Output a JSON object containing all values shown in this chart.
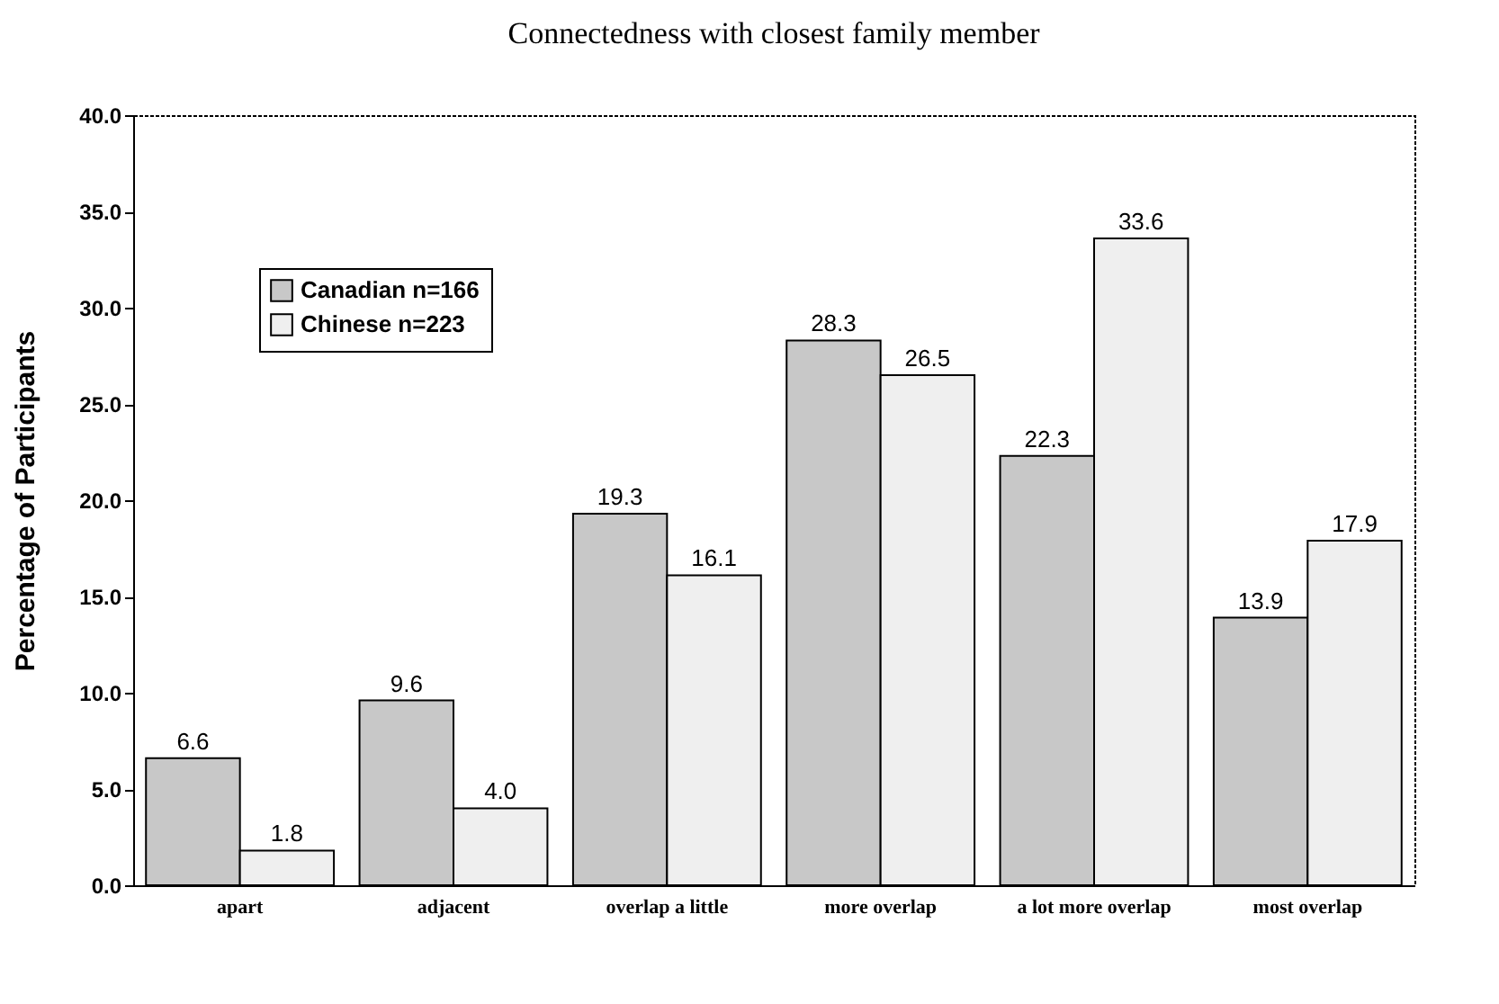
{
  "chart_data": {
    "type": "bar",
    "title": "Connectedness with closest family member",
    "ylabel": "Percentage of Participants",
    "categories": [
      "apart",
      "adjacent",
      "overlap a little",
      "more overlap",
      "a lot more overlap",
      "most overlap"
    ],
    "series": [
      {
        "name": "Canadian n=166",
        "color": "#c8c8c8",
        "values": [
          6.6,
          9.6,
          19.3,
          28.3,
          22.3,
          13.9
        ],
        "value_labels": [
          "6.6",
          "9.6",
          "19.3",
          "28.3",
          "22.3",
          "13.9"
        ]
      },
      {
        "name": "Chinese   n=223",
        "color": "#efefef",
        "values": [
          1.8,
          4.0,
          16.1,
          26.5,
          33.6,
          17.9
        ],
        "value_labels": [
          "1.8",
          "4.0",
          "16.1",
          "26.5",
          "33.6",
          "17.9"
        ]
      }
    ],
    "ylim": [
      0,
      40
    ],
    "yticks": [
      {
        "value": 0,
        "label": "0.0"
      },
      {
        "value": 5,
        "label": "5.0"
      },
      {
        "value": 10,
        "label": "10.0"
      },
      {
        "value": 15,
        "label": "15.0"
      },
      {
        "value": 20,
        "label": "20.0"
      },
      {
        "value": 25,
        "label": "25.0"
      },
      {
        "value": 30,
        "label": "30.0"
      },
      {
        "value": 35,
        "label": "35.0"
      },
      {
        "value": 40,
        "label": "40.0"
      }
    ],
    "legend": "top left",
    "grid": false
  }
}
